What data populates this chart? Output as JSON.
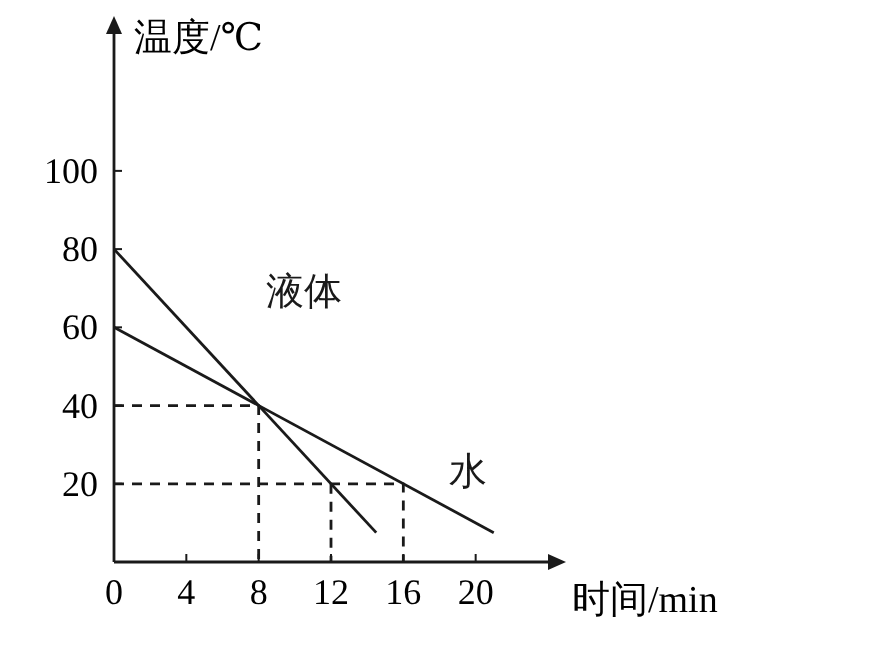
{
  "chart_data": {
    "type": "line",
    "xlabel": "时间/min",
    "ylabel": "温度/℃",
    "xlim": [
      0,
      24
    ],
    "ylim": [
      0,
      135
    ],
    "xticks": [
      0,
      4,
      8,
      12,
      16,
      20
    ],
    "yticks": [
      20,
      40,
      60,
      80,
      100
    ],
    "grid": false,
    "marker": "none",
    "series": [
      {
        "name": "液体",
        "color": "#1a1a1a",
        "x": [
          0,
          14.5
        ],
        "values": [
          80,
          7.5
        ],
        "line_style": "solid"
      },
      {
        "name": "水",
        "color": "#1a1a1a",
        "x": [
          0,
          21
        ],
        "values": [
          60,
          7.5
        ],
        "line_style": "solid"
      },
      {
        "color": "#1a1a1a",
        "x": [
          0,
          8,
          8
        ],
        "values": [
          40,
          40,
          0
        ],
        "line_style": "dashed"
      },
      {
        "color": "#1a1a1a",
        "x": [
          0,
          16,
          16
        ],
        "values": [
          20,
          20,
          0
        ],
        "line_style": "dashed"
      },
      {
        "color": "#1a1a1a",
        "x": [
          12,
          12
        ],
        "values": [
          20,
          0
        ],
        "line_style": "dashed"
      }
    ]
  }
}
